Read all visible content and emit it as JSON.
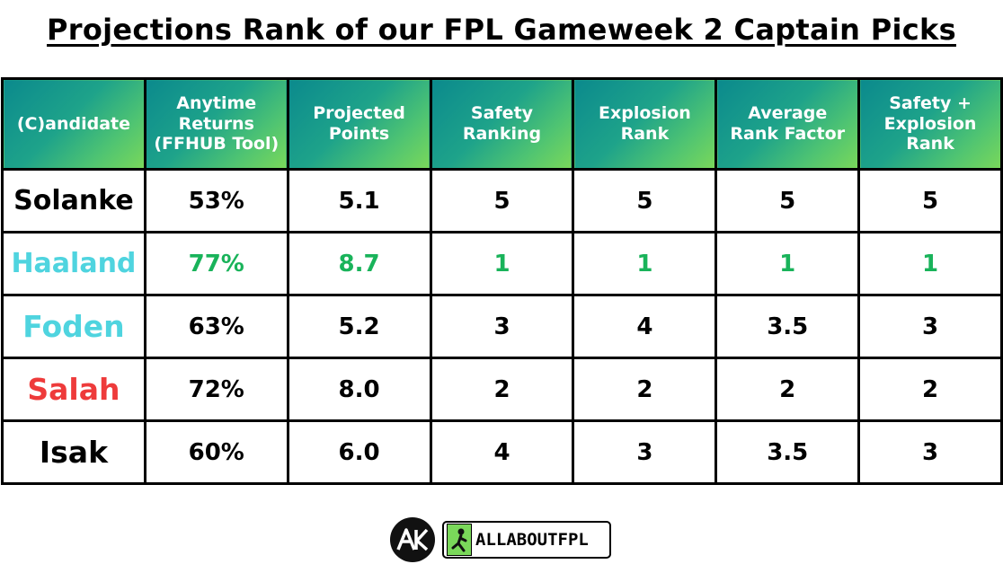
{
  "title": "Projections Rank of our FPL Gameweek 2 Captain Picks",
  "colors": {
    "header_gradient_start": "#0b8a8d",
    "header_gradient_end": "#7ad85a",
    "haaland_name": "#4fd4df",
    "haaland_values": "#19b35a",
    "foden_name": "#4fd4df",
    "salah_name": "#ee3b3b",
    "default_text": "#000000"
  },
  "table": {
    "headers": [
      "(C)andidate",
      "Anytime Returns (FFHUB Tool)",
      "Projected Points",
      "Safety Ranking",
      "Explosion Rank",
      "Average Rank Factor",
      "Safety + Explosion Rank"
    ],
    "rows": [
      {
        "name": "Solanke",
        "returns": "53%",
        "points": "5.1",
        "safety": "5",
        "explosion": "5",
        "average": "5",
        "combined": "5"
      },
      {
        "name": "Haaland",
        "returns": "77%",
        "points": "8.7",
        "safety": "1",
        "explosion": "1",
        "average": "1",
        "combined": "1"
      },
      {
        "name": "Foden",
        "returns": "63%",
        "points": "5.2",
        "safety": "3",
        "explosion": "4",
        "average": "3.5",
        "combined": "3"
      },
      {
        "name": "Salah",
        "returns": "72%",
        "points": "8.0",
        "safety": "2",
        "explosion": "2",
        "average": "2",
        "combined": "2"
      },
      {
        "name": "Isak",
        "returns": "60%",
        "points": "6.0",
        "safety": "4",
        "explosion": "3",
        "average": "3.5",
        "combined": "3"
      }
    ]
  },
  "footer": {
    "monogram": "AK",
    "brand": "ALLABOUTFPL",
    "icons": [
      "ak-monogram-logo",
      "allaboutfpl-logo"
    ]
  }
}
